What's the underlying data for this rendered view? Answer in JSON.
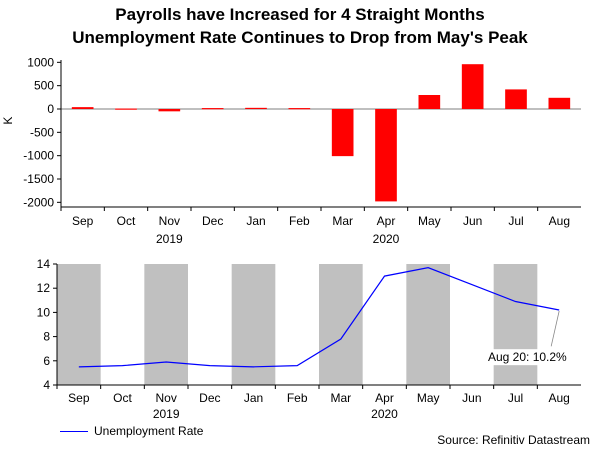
{
  "title_line1": "Payrolls have Increased for 4 Straight Months",
  "title_line2": "Unemployment Rate Continues to Drop from May's Peak",
  "source": "Source: Refinitiv Datastream",
  "chart_data": [
    {
      "type": "bar",
      "title": "Payrolls have Increased for 4 Straight Months",
      "ylabel": "K",
      "categories": [
        "Sep",
        "Oct",
        "Nov",
        "Dec",
        "Jan",
        "Feb",
        "Mar",
        "Apr",
        "May",
        "Jun",
        "Jul",
        "Aug"
      ],
      "year_labels": [
        {
          "label": "2019",
          "under": "Nov"
        },
        {
          "label": "2020",
          "under": "Apr"
        }
      ],
      "values": [
        40,
        10,
        -50,
        20,
        25,
        20,
        -1010,
        -1980,
        300,
        960,
        420,
        240
      ],
      "ylim": [
        -2100,
        1050
      ],
      "yticks": [
        1000,
        500,
        0,
        -500,
        -1000,
        -1500,
        -2000
      ],
      "bar_color": "#ff0000"
    },
    {
      "type": "line",
      "title": "Unemployment Rate Continues to Drop from May's Peak",
      "categories": [
        "Sep",
        "Oct",
        "Nov",
        "Dec",
        "Jan",
        "Feb",
        "Mar",
        "Apr",
        "May",
        "Jun",
        "Jul",
        "Aug"
      ],
      "year_labels": [
        {
          "label": "2019",
          "under": "Nov"
        },
        {
          "label": "2020",
          "under": "Apr"
        }
      ],
      "series": [
        {
          "name": "Unemployment Rate",
          "color": "#0000ff",
          "values": [
            5.5,
            5.6,
            5.9,
            5.6,
            5.5,
            5.6,
            7.8,
            13.0,
            13.7,
            12.3,
            10.9,
            10.2
          ]
        }
      ],
      "ylim": [
        4,
        14
      ],
      "yticks": [
        14,
        12,
        10,
        8,
        6,
        4
      ],
      "shaded_months": [
        "Sep",
        "Nov",
        "Jan",
        "Mar",
        "May",
        "Jul",
        "Sep"
      ],
      "annotation": "Aug 20: 10.2%",
      "shade_color": "#c0c0c0"
    }
  ]
}
